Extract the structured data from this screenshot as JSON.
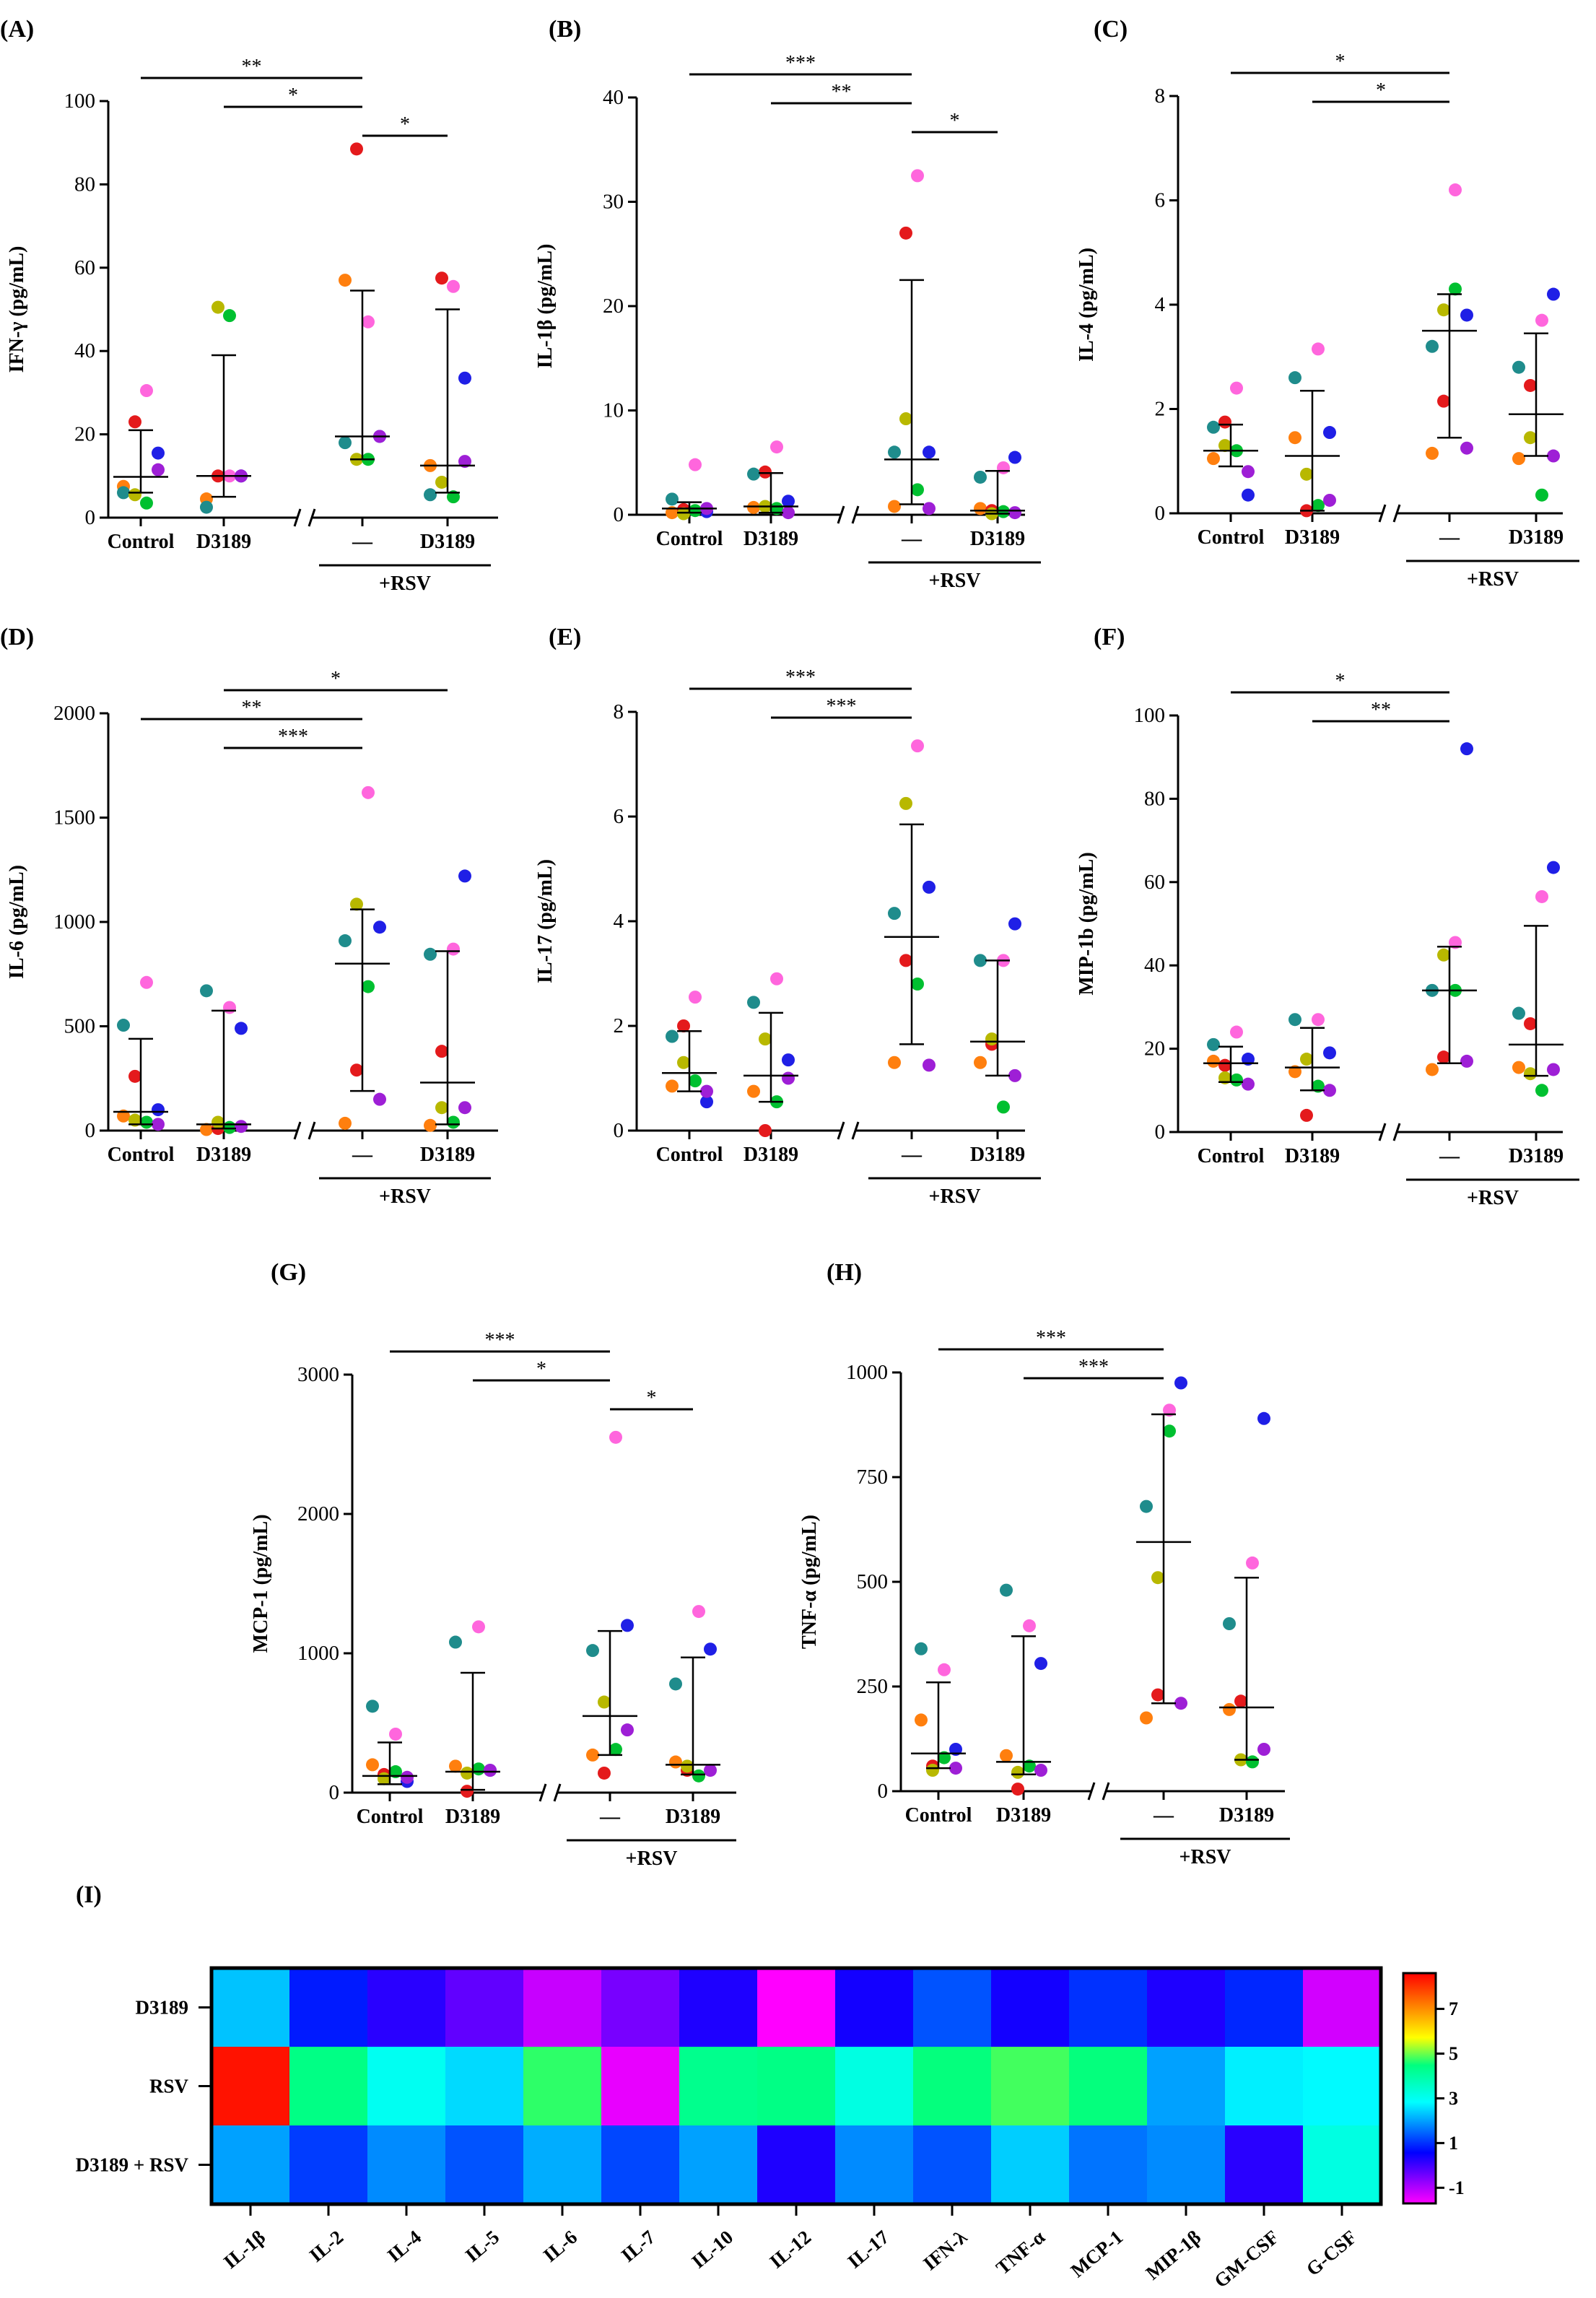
{
  "series_colors": [
    "#ff7f0e",
    "#e41a1c",
    "#ff66dd",
    "#1f1fe6",
    "#1f8c8c",
    "#b8b800",
    "#00c030",
    "#9e1fd6"
  ],
  "chart_data": [
    {
      "panel": "(A)",
      "type": "scatter",
      "ylabel": "IFN-γ (pg/mL)",
      "ylim": [
        0,
        100
      ],
      "yticks": [
        0,
        20,
        40,
        60,
        80,
        100
      ],
      "categories": [
        "Control",
        "D3189",
        "—",
        "D3189"
      ],
      "group_label": "+RSV",
      "medians": [
        9.8,
        10,
        19.5,
        12.5
      ],
      "upper": [
        21,
        39,
        54.5,
        50
      ],
      "lower": [
        6,
        5,
        14,
        6
      ],
      "points": [
        [
          7.5,
          23,
          30.5,
          15.5,
          6,
          5.5,
          3.5,
          11.5
        ],
        [
          4.5,
          10,
          10,
          10,
          2.5,
          50.5,
          48.5,
          10
        ],
        [
          57,
          88.5,
          47,
          19.5,
          18,
          14,
          14,
          19.5
        ],
        [
          12.5,
          57.5,
          55.5,
          33.5,
          5.5,
          8.5,
          5,
          13.5
        ]
      ],
      "annotations": [
        {
          "from": 0,
          "to": 2,
          "label": "**"
        },
        {
          "from": 1,
          "to": 2,
          "label": "*"
        },
        {
          "from": 2,
          "to": 3,
          "label": "*"
        }
      ]
    },
    {
      "panel": "(B)",
      "type": "scatter",
      "ylabel": "IL-1β (pg/mL)",
      "ylim": [
        0,
        40
      ],
      "yticks": [
        0,
        10,
        20,
        30,
        40
      ],
      "categories": [
        "Control",
        "D3189",
        "—",
        "D3189"
      ],
      "group_label": "+RSV",
      "medians": [
        0.6,
        0.8,
        5.3,
        0.4
      ],
      "upper": [
        1.2,
        4,
        22.5,
        4.2
      ],
      "lower": [
        0.2,
        0.2,
        1,
        0.1
      ],
      "points": [
        [
          0.2,
          0.5,
          4.8,
          0.3,
          1.5,
          0.1,
          0.4,
          0.6
        ],
        [
          0.7,
          4.1,
          6.5,
          1.3,
          3.9,
          0.8,
          0.6,
          0.2
        ],
        [
          0.8,
          27,
          32.5,
          6,
          6,
          9.2,
          2.4,
          0.6
        ],
        [
          0.6,
          0.4,
          4.5,
          5.5,
          3.6,
          0.1,
          0.3,
          0.2
        ]
      ],
      "annotations": [
        {
          "from": 0,
          "to": 2,
          "label": "***"
        },
        {
          "from": 1,
          "to": 2,
          "label": "**"
        },
        {
          "from": 2,
          "to": 3,
          "label": "*"
        }
      ]
    },
    {
      "panel": "(C)",
      "type": "scatter",
      "ylabel": "IL-4 (pg/mL)",
      "ylim": [
        0,
        8
      ],
      "yticks": [
        0,
        2,
        4,
        6,
        8
      ],
      "categories": [
        "Control",
        "D3189",
        "—",
        "D3189"
      ],
      "group_label": "+RSV",
      "medians": [
        1.2,
        1.1,
        3.5,
        1.9
      ],
      "upper": [
        1.7,
        2.35,
        4.2,
        3.45
      ],
      "lower": [
        0.9,
        0.05,
        1.45,
        1.1
      ],
      "points": [
        [
          1.05,
          1.75,
          2.4,
          0.35,
          1.65,
          1.3,
          1.2,
          0.8
        ],
        [
          1.45,
          0.05,
          3.15,
          1.55,
          2.6,
          0.75,
          0.15,
          0.25
        ],
        [
          1.15,
          2.15,
          6.2,
          3.8,
          3.2,
          3.9,
          4.3,
          1.25
        ],
        [
          1.05,
          2.45,
          3.7,
          4.2,
          2.8,
          1.45,
          0.35,
          1.1
        ]
      ],
      "annotations": [
        {
          "from": 0,
          "to": 2,
          "label": "*"
        },
        {
          "from": 1,
          "to": 2,
          "label": "*"
        }
      ]
    },
    {
      "panel": "(D)",
      "type": "scatter",
      "ylabel": "IL-6 (pg/mL)",
      "ylim": [
        0,
        2000
      ],
      "yticks": [
        0,
        500,
        1000,
        1500,
        2000
      ],
      "categories": [
        "Control",
        "D3189",
        "—",
        "D3189"
      ],
      "group_label": "+RSV",
      "medians": [
        90,
        30,
        800,
        230
      ],
      "upper": [
        440,
        575,
        1060,
        860
      ],
      "lower": [
        30,
        10,
        190,
        30
      ],
      "points": [
        [
          70,
          260,
          710,
          100,
          505,
          50,
          40,
          30
        ],
        [
          5,
          10,
          590,
          490,
          670,
          40,
          15,
          20
        ],
        [
          35,
          290,
          1620,
          975,
          910,
          1085,
          690,
          150
        ],
        [
          25,
          380,
          870,
          1220,
          845,
          110,
          40,
          110
        ]
      ],
      "annotations": [
        {
          "from": 1,
          "to": 3,
          "label": "*"
        },
        {
          "from": 0,
          "to": 2,
          "label": "**"
        },
        {
          "from": 1,
          "to": 2,
          "label": "***"
        }
      ]
    },
    {
      "panel": "(E)",
      "type": "scatter",
      "ylabel": "IL-17 (pg/mL)",
      "ylim": [
        0,
        8
      ],
      "yticks": [
        0,
        2,
        4,
        6,
        8
      ],
      "categories": [
        "Control",
        "D3189",
        "—",
        "D3189"
      ],
      "group_label": "+RSV",
      "medians": [
        1.1,
        1.05,
        3.7,
        1.7
      ],
      "upper": [
        1.9,
        2.25,
        5.85,
        3.25
      ],
      "lower": [
        0.75,
        0.55,
        1.65,
        1.05
      ],
      "points": [
        [
          0.85,
          2.0,
          2.55,
          0.55,
          1.8,
          1.3,
          0.95,
          0.75
        ],
        [
          0.75,
          0.0,
          2.9,
          1.35,
          2.45,
          1.75,
          0.55,
          1.0
        ],
        [
          1.3,
          3.25,
          7.35,
          4.65,
          4.15,
          6.25,
          2.8,
          1.25
        ],
        [
          1.3,
          1.65,
          3.25,
          3.95,
          3.25,
          1.75,
          0.45,
          1.05
        ]
      ],
      "annotations": [
        {
          "from": 0,
          "to": 2,
          "label": "***"
        },
        {
          "from": 1,
          "to": 2,
          "label": "***"
        }
      ]
    },
    {
      "panel": "(F)",
      "type": "scatter",
      "ylabel": "MIP-1b (pg/mL)",
      "ylim": [
        0,
        100
      ],
      "yticks": [
        0,
        20,
        40,
        60,
        80,
        100
      ],
      "categories": [
        "Control",
        "D3189",
        "—",
        "D3189"
      ],
      "group_label": "+RSV",
      "medians": [
        16.5,
        15.5,
        34,
        21
      ],
      "upper": [
        20.5,
        25,
        44.5,
        49.5
      ],
      "lower": [
        12,
        10,
        16.5,
        13.5
      ],
      "points": [
        [
          17,
          16,
          24,
          17.5,
          21,
          13,
          12.5,
          11.5
        ],
        [
          14.5,
          4,
          27,
          19,
          27,
          17.5,
          11,
          10
        ],
        [
          15,
          18,
          45.5,
          92,
          34,
          42.5,
          34,
          17
        ],
        [
          15.5,
          26,
          56.5,
          63.5,
          28.5,
          14,
          10,
          15
        ]
      ],
      "annotations": [
        {
          "from": 0,
          "to": 2,
          "label": "*"
        },
        {
          "from": 1,
          "to": 2,
          "label": "**"
        }
      ]
    },
    {
      "panel": "(G)",
      "type": "scatter",
      "ylabel": "MCP-1 (pg/mL)",
      "ylim": [
        0,
        3000
      ],
      "yticks": [
        0,
        1000,
        2000,
        3000
      ],
      "categories": [
        "Control",
        "D3189",
        "—",
        "D3189"
      ],
      "group_label": "+RSV",
      "medians": [
        120,
        150,
        550,
        200
      ],
      "upper": [
        360,
        860,
        1160,
        970
      ],
      "lower": [
        60,
        20,
        270,
        130
      ],
      "points": [
        [
          200,
          130,
          420,
          80,
          620,
          100,
          150,
          110
        ],
        [
          190,
          10,
          1190,
          160,
          1080,
          140,
          170,
          160
        ],
        [
          270,
          140,
          2550,
          1200,
          1020,
          650,
          310,
          450
        ],
        [
          220,
          160,
          1300,
          1030,
          780,
          190,
          120,
          160
        ]
      ],
      "annotations": [
        {
          "from": 0,
          "to": 2,
          "label": "***"
        },
        {
          "from": 1,
          "to": 2,
          "label": "*"
        },
        {
          "from": 2,
          "to": 3,
          "label": "*"
        }
      ]
    },
    {
      "panel": "(H)",
      "type": "scatter",
      "ylabel": "TNF-α (pg/mL)",
      "ylim": [
        0,
        1000
      ],
      "yticks": [
        0,
        250,
        500,
        750,
        1000
      ],
      "categories": [
        "Control",
        "D3189",
        "—",
        "D3189"
      ],
      "group_label": "+RSV",
      "medians": [
        90,
        70,
        595,
        200
      ],
      "upper": [
        260,
        370,
        900,
        510
      ],
      "lower": [
        55,
        40,
        210,
        75
      ],
      "points": [
        [
          170,
          60,
          290,
          100,
          340,
          50,
          80,
          55
        ],
        [
          85,
          5,
          395,
          305,
          480,
          45,
          60,
          50
        ],
        [
          175,
          230,
          910,
          975,
          680,
          510,
          860,
          210
        ],
        [
          195,
          215,
          545,
          890,
          400,
          75,
          70,
          100
        ]
      ],
      "annotations": [
        {
          "from": 0,
          "to": 2,
          "label": "***"
        },
        {
          "from": 1,
          "to": 2,
          "label": "***"
        }
      ]
    },
    {
      "panel": "(I)",
      "type": "heatmap",
      "rows": [
        "D3189",
        "RSV",
        "D3189 + RSV"
      ],
      "columns": [
        "IL-1β",
        "IL-2",
        "IL-4",
        "IL-5",
        "IL-6",
        "IL-7",
        "IL-10",
        "IL-12",
        "IL-17",
        "IFN-λ",
        "TNF-α",
        "MCP-1",
        "MIP-1β",
        "GM-CSF",
        "G-CSF"
      ],
      "values": [
        [
          2.3,
          0.8,
          0.2,
          -0.3,
          -1.2,
          -0.5,
          0.3,
          -1.7,
          0.4,
          1.3,
          0.4,
          1.0,
          0.3,
          0.9,
          -1.3
        ],
        [
          8.4,
          4.4,
          3.0,
          2.5,
          4.7,
          -1.5,
          4.3,
          4.4,
          3.2,
          4.5,
          4.8,
          4.5,
          2.0,
          2.7,
          2.8
        ],
        [
          2.0,
          1.1,
          1.8,
          1.3,
          2.1,
          1.2,
          2.0,
          0.3,
          1.8,
          1.3,
          2.4,
          1.6,
          1.8,
          0.2,
          3.2
        ]
      ],
      "colorbar_range": [
        -1.7,
        8.6
      ],
      "colorbar_ticks": [
        -1,
        1,
        3,
        5,
        7
      ],
      "colorbar_tick_labels": [
        "-1",
        "1",
        "3",
        "5",
        "7"
      ]
    }
  ]
}
